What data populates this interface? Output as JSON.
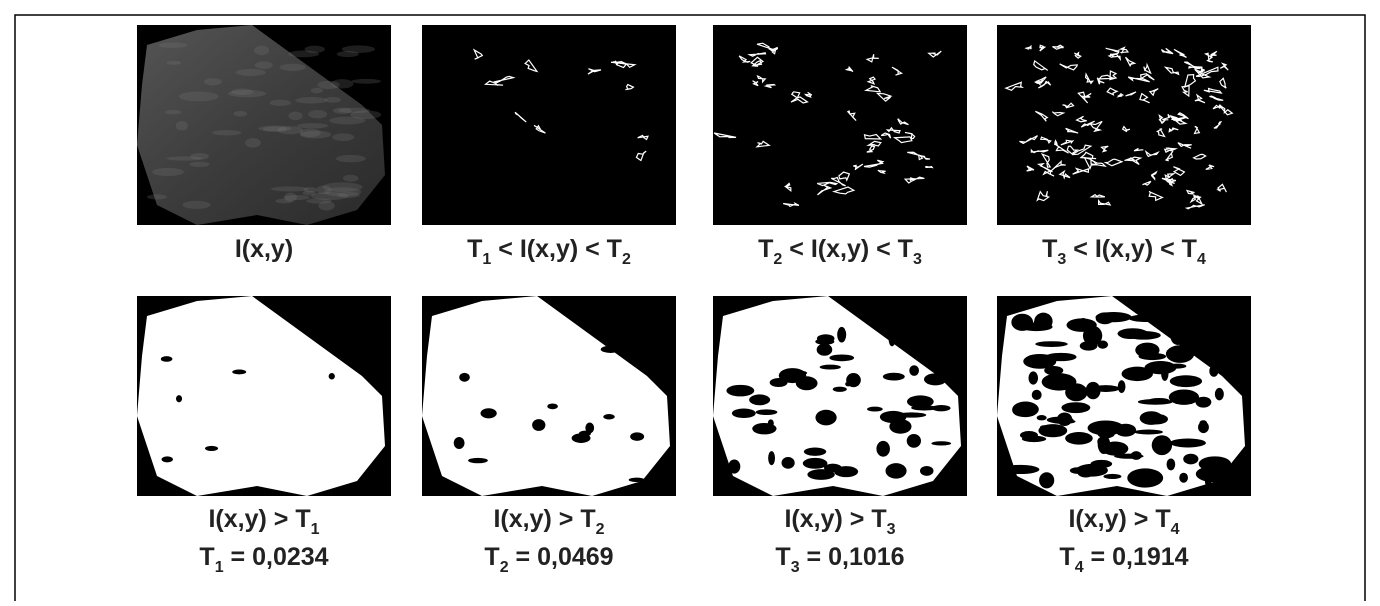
{
  "panels": [
    {
      "caption": [
        [
          {
            "text": "I(x,y)"
          }
        ]
      ]
    },
    {
      "caption": [
        [
          {
            "text": "T",
            "sub": "1"
          },
          {
            "text": " < I(x,y) < T",
            "sub": "2"
          }
        ]
      ]
    },
    {
      "caption": [
        [
          {
            "text": "T",
            "sub": "2"
          },
          {
            "text": " < I(x,y) < T",
            "sub": "3"
          }
        ]
      ]
    },
    {
      "caption": [
        [
          {
            "text": "T",
            "sub": "3"
          },
          {
            "text": " < I(x,y) < T",
            "sub": "4"
          }
        ]
      ]
    },
    {
      "caption": [
        [
          {
            "text": "I(x,y) > T",
            "sub": "1"
          }
        ],
        [
          {
            "text": "T",
            "sub": "1"
          },
          {
            "text": " = 0,0234"
          }
        ]
      ]
    },
    {
      "caption": [
        [
          {
            "text": "I(x,y) > T",
            "sub": "2"
          }
        ],
        [
          {
            "text": "T",
            "sub": "2"
          },
          {
            "text": " = 0,0469"
          }
        ]
      ]
    },
    {
      "caption": [
        [
          {
            "text": "I(x,y) > T",
            "sub": "3"
          }
        ],
        [
          {
            "text": "T",
            "sub": "3"
          },
          {
            "text": " = 0,1016"
          }
        ]
      ]
    },
    {
      "caption": [
        [
          {
            "text": "I(x,y) > T",
            "sub": "4"
          }
        ],
        [
          {
            "text": "T",
            "sub": "4"
          },
          {
            "text": " = 0,1914"
          }
        ]
      ]
    }
  ]
}
